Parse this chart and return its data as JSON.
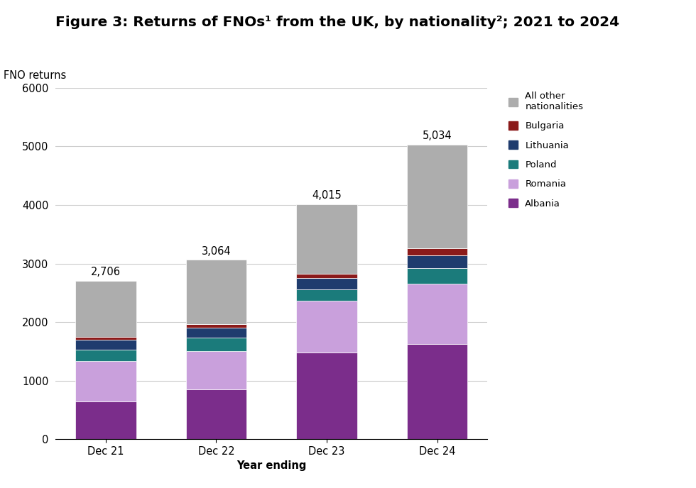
{
  "title": "Figure 3: Returns of FNOs¹ from the UK, by nationality²; 2021 to 2024",
  "ylabel": "FNO returns",
  "xlabel": "Year ending",
  "categories": [
    "Dec 21",
    "Dec 22",
    "Dec 23",
    "Dec 24"
  ],
  "totals": [
    2706,
    3064,
    4015,
    5034
  ],
  "series": [
    {
      "label": "Albania",
      "color": "#7B2D8B",
      "values": [
        650,
        850,
        1480,
        1620
      ]
    },
    {
      "label": "Romania",
      "color": "#C9A0DC",
      "values": [
        680,
        650,
        880,
        1030
      ]
    },
    {
      "label": "Poland",
      "color": "#1B7B7B",
      "values": [
        200,
        230,
        200,
        270
      ]
    },
    {
      "label": "Lithuania",
      "color": "#1F3C6E",
      "values": [
        170,
        175,
        195,
        215
      ]
    },
    {
      "label": "Bulgaria",
      "color": "#8B1A1A",
      "values": [
        50,
        55,
        75,
        125
      ]
    },
    {
      "label": "All other\nnationalities",
      "color": "#ADADAD",
      "values": [
        956,
        1104,
        1185,
        1774
      ]
    }
  ],
  "ylim": [
    0,
    6000
  ],
  "yticks": [
    0,
    1000,
    2000,
    3000,
    4000,
    5000,
    6000
  ],
  "background_color": "#FFFFFF",
  "title_fontsize": 14.5,
  "axis_label_fontsize": 10.5,
  "tick_fontsize": 10.5,
  "annotation_fontsize": 10.5
}
